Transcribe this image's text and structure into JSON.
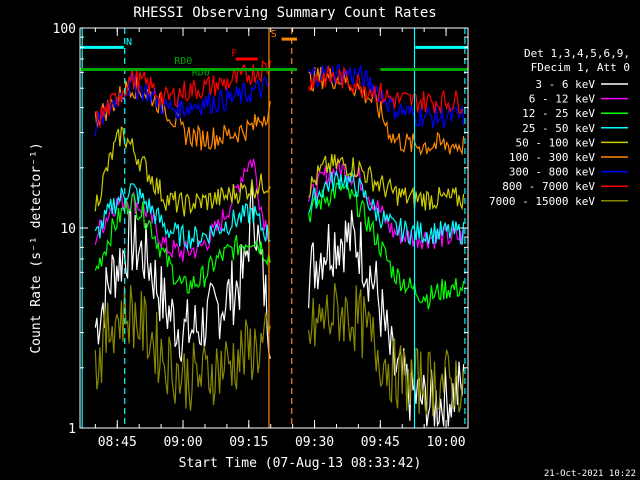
{
  "chart_data": {
    "type": "line",
    "title": "RHESSI Observing Summary Count Rates",
    "xlabel": "Start Time (07-Aug-13 08:33:42)",
    "ylabel": "Count Rate (s⁻¹ detector⁻¹)",
    "yscale": "log",
    "ylim": [
      1,
      100
    ],
    "xlim_minutes": [
      8.3,
      98.0
    ],
    "x_ticks": [
      {
        "label": "08:45",
        "minutes": 45
      },
      {
        "label": "09:00",
        "minutes": 60
      },
      {
        "label": "09:15",
        "minutes": 75
      },
      {
        "label": "09:30",
        "minutes": 90
      },
      {
        "label": "09:45",
        "minutes": 105
      },
      {
        "label": "10:00",
        "minutes": 120
      }
    ],
    "y_ticks": [
      {
        "label": "1",
        "value": 1
      },
      {
        "label": "10",
        "value": 10
      },
      {
        "label": "100",
        "value": 100
      }
    ],
    "legend": {
      "placement": "right",
      "header": [
        "Det 1,3,4,5,6,9,",
        "FDecim 1, Att 0"
      ],
      "entries": [
        {
          "label": "3 - 6 keV",
          "color": "#ffffff"
        },
        {
          "label": "6 - 12 keV",
          "color": "#ff00ff"
        },
        {
          "label": "12 - 25 keV",
          "color": "#00ff00"
        },
        {
          "label": "25 - 50 keV",
          "color": "#00ffff"
        },
        {
          "label": "50 - 100 keV",
          "color": "#cccc00"
        },
        {
          "label": "100 - 300 keV",
          "color": "#ff8800"
        },
        {
          "label": "300 - 800 keV",
          "color": "#0000ff"
        },
        {
          "label": "800 - 7000 keV",
          "color": "#ff0000"
        },
        {
          "label": "7000 - 15000 keV",
          "color": "#888800"
        }
      ]
    },
    "series": [
      {
        "name": "3 - 6 keV",
        "color": "#ffffff",
        "points": [
          [
            40,
            3.2
          ],
          [
            44,
            6
          ],
          [
            48,
            8.5
          ],
          [
            52,
            7
          ],
          [
            56,
            4
          ],
          [
            60,
            3
          ],
          [
            64,
            3.2
          ],
          [
            68,
            4
          ],
          [
            72,
            5
          ],
          [
            74,
            6
          ],
          [
            76,
            14
          ],
          [
            78,
            6
          ],
          [
            80,
            3
          ],
          [
            89,
            6
          ],
          [
            92,
            8
          ],
          [
            96,
            9
          ],
          [
            100,
            8.5
          ],
          [
            104,
            5
          ],
          [
            108,
            2
          ],
          [
            112,
            1.5
          ],
          [
            116,
            1.3
          ],
          [
            120,
            1.4
          ],
          [
            124,
            1.6
          ]
        ]
      },
      {
        "name": "6 - 12 keV",
        "color": "#ff00ff",
        "points": [
          [
            40,
            9
          ],
          [
            44,
            13
          ],
          [
            48,
            14
          ],
          [
            52,
            12
          ],
          [
            56,
            8
          ],
          [
            60,
            7.5
          ],
          [
            64,
            8
          ],
          [
            68,
            10
          ],
          [
            72,
            15
          ],
          [
            74,
            20
          ],
          [
            76,
            22
          ],
          [
            78,
            12
          ],
          [
            80,
            9
          ],
          [
            89,
            14
          ],
          [
            92,
            18
          ],
          [
            96,
            20
          ],
          [
            100,
            18
          ],
          [
            104,
            13
          ],
          [
            108,
            9.5
          ],
          [
            112,
            9
          ],
          [
            116,
            9
          ],
          [
            120,
            9
          ],
          [
            124,
            9
          ]
        ]
      },
      {
        "name": "12 - 25 keV",
        "color": "#00ff00",
        "points": [
          [
            40,
            6
          ],
          [
            44,
            10
          ],
          [
            48,
            14
          ],
          [
            52,
            11
          ],
          [
            56,
            7
          ],
          [
            60,
            5
          ],
          [
            64,
            5.5
          ],
          [
            68,
            7
          ],
          [
            72,
            8
          ],
          [
            76,
            9
          ],
          [
            78,
            8
          ],
          [
            80,
            7
          ],
          [
            89,
            12
          ],
          [
            92,
            14
          ],
          [
            96,
            16
          ],
          [
            100,
            13
          ],
          [
            104,
            9
          ],
          [
            108,
            6
          ],
          [
            112,
            5
          ],
          [
            116,
            4.5
          ],
          [
            120,
            5
          ],
          [
            124,
            5
          ]
        ]
      },
      {
        "name": "25 - 50 keV",
        "color": "#00ffff",
        "points": [
          [
            40,
            9
          ],
          [
            44,
            13
          ],
          [
            48,
            16
          ],
          [
            52,
            13
          ],
          [
            56,
            10
          ],
          [
            60,
            9
          ],
          [
            64,
            9
          ],
          [
            68,
            10
          ],
          [
            72,
            11
          ],
          [
            76,
            12
          ],
          [
            78,
            10
          ],
          [
            80,
            9
          ],
          [
            89,
            13
          ],
          [
            92,
            16
          ],
          [
            96,
            18
          ],
          [
            100,
            16
          ],
          [
            104,
            12
          ],
          [
            108,
            10
          ],
          [
            112,
            9.5
          ],
          [
            116,
            9.5
          ],
          [
            120,
            9.5
          ],
          [
            124,
            9.5
          ]
        ]
      },
      {
        "name": "50 - 100 keV",
        "color": "#cccc00",
        "points": [
          [
            40,
            13
          ],
          [
            44,
            24
          ],
          [
            46,
            30
          ],
          [
            48,
            26
          ],
          [
            52,
            19
          ],
          [
            56,
            14
          ],
          [
            60,
            13
          ],
          [
            64,
            13.5
          ],
          [
            68,
            14
          ],
          [
            72,
            15
          ],
          [
            76,
            16
          ],
          [
            80,
            17
          ],
          [
            89,
            16
          ],
          [
            92,
            20
          ],
          [
            96,
            21
          ],
          [
            100,
            20
          ],
          [
            104,
            17
          ],
          [
            108,
            15
          ],
          [
            112,
            14
          ],
          [
            116,
            14
          ],
          [
            120,
            14
          ],
          [
            124,
            14
          ]
        ]
      },
      {
        "name": "100 - 300 keV",
        "color": "#ff8800",
        "points": [
          [
            40,
            35
          ],
          [
            44,
            42
          ],
          [
            48,
            52
          ],
          [
            52,
            47
          ],
          [
            56,
            40
          ],
          [
            60,
            30
          ],
          [
            64,
            28
          ],
          [
            68,
            28.5
          ],
          [
            72,
            30
          ],
          [
            76,
            32
          ],
          [
            80,
            40
          ],
          [
            89,
            55
          ],
          [
            92,
            57
          ],
          [
            96,
            56
          ],
          [
            100,
            50
          ],
          [
            104,
            42
          ],
          [
            108,
            28
          ],
          [
            112,
            26
          ],
          [
            116,
            26
          ],
          [
            120,
            26
          ],
          [
            124,
            26
          ]
        ]
      },
      {
        "name": "300 - 800 keV",
        "color": "#0000ff",
        "points": [
          [
            40,
            32
          ],
          [
            44,
            42
          ],
          [
            48,
            52
          ],
          [
            52,
            48
          ],
          [
            56,
            40
          ],
          [
            60,
            40
          ],
          [
            64,
            42
          ],
          [
            68,
            43
          ],
          [
            72,
            45
          ],
          [
            76,
            48
          ],
          [
            80,
            52
          ],
          [
            89,
            58
          ],
          [
            92,
            59
          ],
          [
            96,
            60
          ],
          [
            100,
            58
          ],
          [
            104,
            50
          ],
          [
            108,
            40
          ],
          [
            112,
            37
          ],
          [
            116,
            36
          ],
          [
            120,
            36
          ],
          [
            124,
            36
          ]
        ]
      },
      {
        "name": "800 - 7000 keV",
        "color": "#ff0000",
        "points": [
          [
            40,
            34
          ],
          [
            44,
            42
          ],
          [
            48,
            56
          ],
          [
            52,
            52
          ],
          [
            56,
            44
          ],
          [
            60,
            48
          ],
          [
            64,
            50
          ],
          [
            68,
            52
          ],
          [
            72,
            55
          ],
          [
            76,
            60
          ],
          [
            80,
            65
          ],
          [
            89,
            55
          ],
          [
            92,
            57
          ],
          [
            96,
            56
          ],
          [
            100,
            53
          ],
          [
            104,
            48
          ],
          [
            108,
            44
          ],
          [
            112,
            43
          ],
          [
            116,
            43
          ],
          [
            120,
            43
          ],
          [
            124,
            43
          ]
        ]
      },
      {
        "name": "7000 - 15000 keV",
        "color": "#888800",
        "points": [
          [
            40,
            2
          ],
          [
            44,
            3.5
          ],
          [
            48,
            3.8
          ],
          [
            52,
            3
          ],
          [
            56,
            2.2
          ],
          [
            60,
            1.8
          ],
          [
            64,
            1.8
          ],
          [
            68,
            2
          ],
          [
            72,
            2.2
          ],
          [
            76,
            2.5
          ],
          [
            80,
            2.6
          ],
          [
            89,
            3
          ],
          [
            92,
            3.5
          ],
          [
            96,
            3.8
          ],
          [
            100,
            3.5
          ],
          [
            104,
            2.5
          ],
          [
            108,
            1.9
          ],
          [
            112,
            1.7
          ],
          [
            116,
            1.7
          ],
          [
            120,
            1.7
          ],
          [
            124,
            1.7
          ]
        ]
      }
    ],
    "annotations": [
      {
        "label": "N",
        "minutes": 47,
        "value": 82,
        "color": "#00ffff"
      },
      {
        "label": "RD0",
        "minutes": 58,
        "value": 66,
        "color": "#00aa00"
      },
      {
        "label": "RD0",
        "minutes": 62,
        "value": 58,
        "color": "#00aa00"
      },
      {
        "label": "F",
        "minutes": 71,
        "value": 72,
        "color": "#ff0000"
      },
      {
        "label": "S",
        "minutes": 80,
        "value": 90,
        "color": "#ff8800"
      }
    ],
    "bars": [
      {
        "color": "#00ffff",
        "from": 36.5,
        "to": 46.5,
        "value": 80
      },
      {
        "color": "#00ffff",
        "from": 113,
        "to": 125,
        "value": 80
      },
      {
        "color": "#00aa00",
        "from": 36.5,
        "to": 86,
        "value": 62
      },
      {
        "color": "#00aa00",
        "from": 105,
        "to": 125,
        "value": 62
      },
      {
        "color": "#ff0000",
        "from": 72,
        "to": 77,
        "value": 70
      },
      {
        "color": "#ff8800",
        "from": 82.5,
        "to": 86,
        "value": 88
      }
    ],
    "vlines": [
      {
        "minutes": 37,
        "color": "#00ffff",
        "dashed": false
      },
      {
        "minutes": 46.7,
        "color": "#00ffff",
        "dashed": true
      },
      {
        "minutes": 79.6,
        "color": "#ff8800",
        "dashed": false
      },
      {
        "minutes": 84.8,
        "color": "#ff8800",
        "dashed": true
      },
      {
        "minutes": 112.8,
        "color": "#00ffff",
        "dashed": false
      },
      {
        "minutes": 124.3,
        "color": "#00ffff",
        "dashed": true
      }
    ]
  },
  "timestamp": "21-Oct-2021 10:22"
}
